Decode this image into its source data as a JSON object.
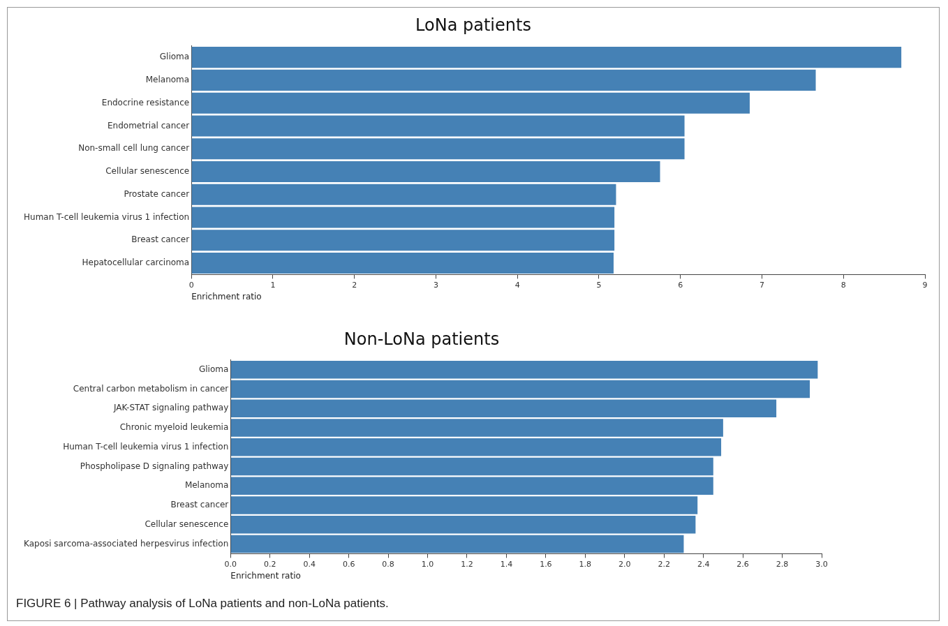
{
  "chart_data": [
    {
      "type": "bar",
      "orientation": "horizontal",
      "title": "LoNa patients",
      "xlabel": "Enrichment ratio",
      "categories": [
        "Glioma",
        "Melanoma",
        "Endocrine resistance",
        "Endometrial cancer",
        "Non-small cell lung cancer",
        "Cellular senescence",
        "Prostate cancer",
        "Human T-cell leukemia virus 1 infection",
        "Breast cancer",
        "Hepatocellular carcinoma"
      ],
      "values": [
        8.71,
        7.66,
        6.85,
        6.05,
        6.05,
        5.75,
        5.21,
        5.19,
        5.19,
        5.18
      ],
      "color": "#4581b5",
      "xlim": [
        0,
        9
      ],
      "xticks": [
        0,
        1,
        2,
        3,
        4,
        5,
        6,
        7,
        8,
        9
      ],
      "grid": false,
      "legend": false
    },
    {
      "type": "bar",
      "orientation": "horizontal",
      "title": "Non-LoNa patients",
      "xlabel": "Enrichment ratio",
      "categories": [
        "Glioma",
        "Central carbon metabolism in cancer",
        "JAK-STAT signaling pathway",
        "Chronic myeloid leukemia",
        "Human T-cell leukemia virus 1 infection",
        "Phospholipase D signaling pathway",
        "Melanoma",
        "Breast cancer",
        "Cellular senescence",
        "Kaposi sarcoma-associated herpesvirus infection"
      ],
      "values": [
        2.98,
        2.94,
        2.77,
        2.5,
        2.49,
        2.45,
        2.45,
        2.37,
        2.36,
        2.3
      ],
      "color": "#4581b5",
      "xlim": [
        0,
        3.0
      ],
      "xticks": [
        {
          "value": 0,
          "label": "0.0"
        },
        0.2,
        0.4,
        0.6,
        0.8,
        {
          "value": 1,
          "label": "1.0"
        },
        1.2,
        1.4,
        1.6,
        1.8,
        {
          "value": 2,
          "label": "2.0"
        },
        2.2,
        2.4,
        2.6,
        2.8,
        {
          "value": 3,
          "label": "3.0"
        }
      ],
      "grid": false,
      "legend": false,
      "annotations": [
        "FIGURE 6 | Pathway analysis of LoNa patients and non-LoNa patients."
      ]
    }
  ]
}
